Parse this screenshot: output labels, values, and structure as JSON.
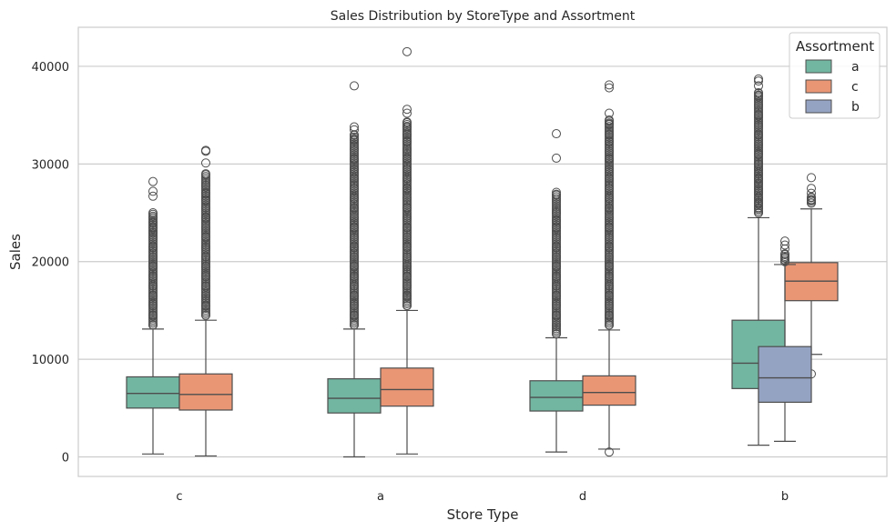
{
  "chart_data": {
    "type": "box",
    "title": "Sales Distribution by StoreType and Assortment",
    "xlabel": "Store Type",
    "ylabel": "Sales",
    "ylim": [
      -2000,
      44000
    ],
    "yticks": [
      0,
      10000,
      20000,
      30000,
      40000
    ],
    "grid": "horizontal",
    "legend": {
      "title": "Assortment",
      "placement": "top-right"
    },
    "categories": [
      "c",
      "a",
      "d",
      "b"
    ],
    "series": [
      {
        "name": "a",
        "color": "#72b6a1"
      },
      {
        "name": "c",
        "color": "#e99675"
      },
      {
        "name": "b",
        "color": "#95a3c3"
      }
    ],
    "boxes": [
      {
        "category": "c",
        "series": "a",
        "whisker_low": 300,
        "q1": 5000,
        "median": 6500,
        "q3": 8200,
        "whisker_high": 13100,
        "outliers": [
          13500,
          14500,
          15500,
          16500,
          17500,
          18500,
          19500,
          20500,
          21500,
          22500,
          23000,
          23500,
          24000,
          24500,
          25000,
          26700,
          27200,
          28200
        ]
      },
      {
        "category": "c",
        "series": "c",
        "whisker_low": 100,
        "q1": 4800,
        "median": 6400,
        "q3": 8500,
        "whisker_high": 14000,
        "outliers": [
          14500,
          15500,
          16500,
          17500,
          18500,
          19500,
          20500,
          21500,
          22500,
          23500,
          24500,
          25500,
          26300,
          27000,
          27800,
          29000,
          30100,
          31300,
          31400
        ]
      },
      {
        "category": "a",
        "series": "a",
        "whisker_low": 0,
        "q1": 4500,
        "median": 6000,
        "q3": 8000,
        "whisker_high": 13100,
        "outliers": [
          13500,
          14500,
          15500,
          16500,
          17500,
          18500,
          19500,
          20500,
          21500,
          22500,
          23500,
          24500,
          25500,
          26500,
          27500,
          28500,
          29500,
          30500,
          31500,
          32500,
          33000,
          33500,
          33800,
          38000
        ]
      },
      {
        "category": "a",
        "series": "c",
        "whisker_low": 300,
        "q1": 5200,
        "median": 6900,
        "q3": 9100,
        "whisker_high": 15000,
        "outliers": [
          15500,
          16500,
          17500,
          18500,
          19500,
          20500,
          21500,
          22500,
          23500,
          24500,
          25500,
          26500,
          27500,
          28500,
          29500,
          30500,
          31500,
          32300,
          33000,
          33800,
          34300,
          35200,
          35600,
          41500
        ]
      },
      {
        "category": "d",
        "series": "a",
        "whisker_low": 500,
        "q1": 4700,
        "median": 6100,
        "q3": 7800,
        "whisker_high": 12200,
        "outliers": [
          12600,
          13500,
          14500,
          15500,
          16500,
          17500,
          18500,
          19500,
          20500,
          21500,
          22500,
          23500,
          24200,
          25000,
          26900,
          27100,
          30600,
          33100
        ]
      },
      {
        "category": "d",
        "series": "c",
        "whisker_low": 800,
        "q1": 5300,
        "median": 6600,
        "q3": 8300,
        "whisker_high": 13000,
        "outliers": [
          500,
          13500,
          14500,
          15500,
          16500,
          17500,
          18500,
          19500,
          20500,
          21500,
          22500,
          23500,
          24500,
          25500,
          26500,
          27500,
          28500,
          29500,
          30500,
          31300,
          32300,
          33000,
          34100,
          34500,
          35200,
          37800,
          38100
        ]
      },
      {
        "category": "b",
        "series": "a",
        "whisker_low": 1200,
        "q1": 7000,
        "median": 9600,
        "q3": 14000,
        "whisker_high": 24500,
        "outliers": [
          25000,
          25500,
          26000,
          26500,
          27000,
          27500,
          28000,
          28500,
          29000,
          29500,
          30000,
          31000,
          32000,
          33000,
          34000,
          35000,
          36000,
          37000,
          37300,
          38000,
          38500,
          38700
        ]
      },
      {
        "category": "b",
        "series": "c",
        "whisker_low": 10500,
        "q1": 16000,
        "median": 18000,
        "q3": 19900,
        "whisker_high": 25400,
        "outliers": [
          8500,
          26000,
          26300,
          26600,
          27000,
          27500,
          28600
        ]
      },
      {
        "category": "b",
        "series": "b",
        "whisker_low": 1600,
        "q1": 5600,
        "median": 8100,
        "q3": 11300,
        "whisker_high": 19700,
        "outliers": [
          20000,
          20400,
          20800,
          21300,
          21700,
          22100
        ]
      }
    ]
  }
}
